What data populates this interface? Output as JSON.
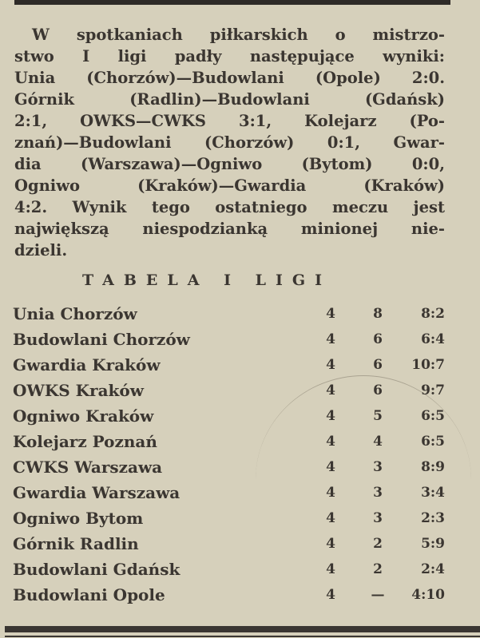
{
  "article": {
    "lines": [
      "W spotkaniach piłkarskich o mistrzo-",
      "stwo I ligi padły następujące wyniki:",
      "Unia (Chorzów)—Budowlani (Opole) 2:0.",
      "Górnik (Radlin)—Budowlani (Gdańsk)",
      "2:1, OWKS—CWKS 3:1, Kolejarz (Po-",
      "znań)—Budowlani (Chorzów) 0:1, Gwar-",
      "dia (Warszawa)—Ogniwo (Bytom) 0:0,",
      "Ogniwo (Kraków)—Gwardia (Kraków)",
      "4:2. Wynik tego ostatniego meczu jest",
      "największą niespodzianką minionej nie-",
      "dzieli."
    ]
  },
  "table": {
    "title": "TABELA I LIGI",
    "rows": [
      {
        "team": "Unia Chorzów",
        "games": "4",
        "points": "8",
        "goals": "8:2"
      },
      {
        "team": "Budowlani Chorzów",
        "games": "4",
        "points": "6",
        "goals": "6:4"
      },
      {
        "team": "Gwardia Kraków",
        "games": "4",
        "points": "6",
        "goals": "10:7"
      },
      {
        "team": "OWKS Kraków",
        "games": "4",
        "points": "6",
        "goals": "9:7"
      },
      {
        "team": "Ogniwo Kraków",
        "games": "4",
        "points": "5",
        "goals": "6:5"
      },
      {
        "team": "Kolejarz Poznań",
        "games": "4",
        "points": "4",
        "goals": "6:5"
      },
      {
        "team": "CWKS Warszawa",
        "games": "4",
        "points": "3",
        "goals": "8:9"
      },
      {
        "team": "Gwardia Warszawa",
        "games": "4",
        "points": "3",
        "goals": "3:4"
      },
      {
        "team": "Ogniwo Bytom",
        "games": "4",
        "points": "3",
        "goals": "2:3"
      },
      {
        "team": "Górnik Radlin",
        "games": "4",
        "points": "2",
        "goals": "5:9"
      },
      {
        "team": "Budowlani Gdańsk",
        "games": "4",
        "points": "2",
        "goals": "2:4"
      },
      {
        "team": "Budowlani Opole",
        "games": "4",
        "points": "—",
        "goals": "4:10"
      }
    ]
  }
}
